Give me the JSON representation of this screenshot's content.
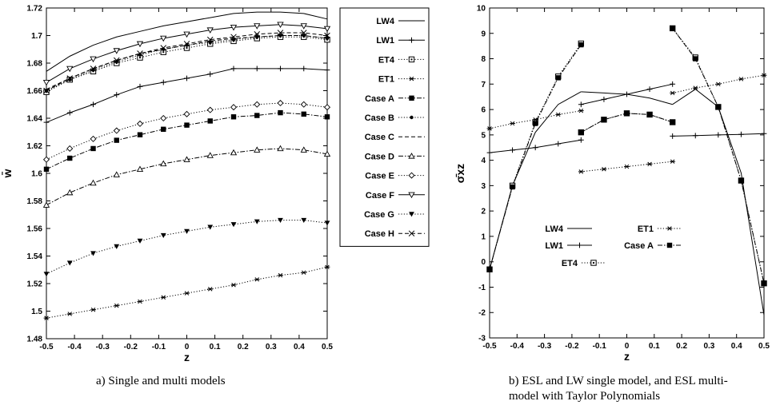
{
  "captions": {
    "a": "a) Single and multi models",
    "b_line1": "b) ESL and LW single model, and ESL multi-",
    "b_line2": "model with Taylor Polynomials"
  },
  "chart_data": [
    {
      "type": "line",
      "xlabel": "z",
      "ylabel": "w̄",
      "xlim": [
        -0.5,
        0.5
      ],
      "ylim": [
        1.48,
        1.72
      ],
      "xticks": [
        "-0.5",
        "-0.4",
        "-0.3",
        "-0.2",
        "-0.1",
        "0",
        "0.1",
        "0.2",
        "0.3",
        "0.4",
        "0.5"
      ],
      "yticks": [
        "1.48",
        "1.5",
        "1.52",
        "1.54",
        "1.56",
        "1.58",
        "1.6",
        "1.62",
        "1.64",
        "1.66",
        "1.68",
        "1.7",
        "1.72"
      ],
      "legend_position": "right-outside",
      "x": [
        -0.5,
        -0.4167,
        -0.3333,
        -0.25,
        -0.1667,
        -0.0833,
        0,
        0.0833,
        0.1667,
        0.25,
        0.3333,
        0.4167,
        0.5
      ],
      "series": [
        {
          "name": "LW4",
          "marker": "none",
          "dash": "solid",
          "values": [
            1.674,
            1.685,
            1.693,
            1.699,
            1.703,
            1.707,
            1.71,
            1.713,
            1.716,
            1.717,
            1.717,
            1.716,
            1.712
          ]
        },
        {
          "name": "LW1",
          "marker": "plus",
          "dash": "solid",
          "values": [
            1.637,
            1.644,
            1.65,
            1.657,
            1.663,
            1.666,
            1.669,
            1.672,
            1.676,
            1.676,
            1.676,
            1.676,
            1.675
          ]
        },
        {
          "name": "ET4",
          "marker": "square-open",
          "dash": "dotted",
          "values": [
            1.659,
            1.668,
            1.674,
            1.68,
            1.684,
            1.688,
            1.691,
            1.694,
            1.696,
            1.698,
            1.699,
            1.699,
            1.697
          ]
        },
        {
          "name": "ET1",
          "marker": "asterisk",
          "dash": "dotted",
          "values": [
            1.495,
            1.498,
            1.501,
            1.504,
            1.507,
            1.51,
            1.513,
            1.516,
            1.519,
            1.523,
            1.526,
            1.528,
            1.532
          ]
        },
        {
          "name": "Case A",
          "marker": "square-filled",
          "dash": "dashdot",
          "values": [
            1.603,
            1.611,
            1.618,
            1.624,
            1.628,
            1.632,
            1.635,
            1.638,
            1.641,
            1.642,
            1.644,
            1.643,
            1.641
          ]
        },
        {
          "name": "Case B",
          "marker": "dot",
          "dash": "dotted",
          "values": [
            1.66,
            1.668,
            1.675,
            1.681,
            1.686,
            1.69,
            1.693,
            1.695,
            1.697,
            1.699,
            1.7,
            1.7,
            1.698
          ]
        },
        {
          "name": "Case C",
          "marker": "none",
          "dash": "dashed",
          "values": [
            1.661,
            1.669,
            1.676,
            1.682,
            1.687,
            1.69,
            1.693,
            1.696,
            1.698,
            1.699,
            1.7,
            1.7,
            1.698
          ]
        },
        {
          "name": "Case D",
          "marker": "triangle",
          "dash": "dashdot",
          "values": [
            1.577,
            1.586,
            1.593,
            1.599,
            1.603,
            1.607,
            1.61,
            1.613,
            1.615,
            1.617,
            1.618,
            1.617,
            1.614
          ]
        },
        {
          "name": "Case E",
          "marker": "diamond-open",
          "dash": "dotted",
          "values": [
            1.61,
            1.618,
            1.625,
            1.631,
            1.636,
            1.64,
            1.643,
            1.646,
            1.648,
            1.65,
            1.651,
            1.65,
            1.648
          ]
        },
        {
          "name": "Case F",
          "marker": "triangle-down-open",
          "dash": "solid",
          "values": [
            1.666,
            1.676,
            1.683,
            1.689,
            1.694,
            1.698,
            1.701,
            1.704,
            1.706,
            1.707,
            1.708,
            1.707,
            1.705
          ]
        },
        {
          "name": "Case G",
          "marker": "triangle-down-filled",
          "dash": "dotted",
          "values": [
            1.527,
            1.535,
            1.542,
            1.547,
            1.551,
            1.555,
            1.558,
            1.561,
            1.563,
            1.565,
            1.566,
            1.566,
            1.564
          ]
        },
        {
          "name": "Case H",
          "marker": "x",
          "dash": "dashed",
          "values": [
            1.66,
            1.669,
            1.676,
            1.682,
            1.687,
            1.691,
            1.694,
            1.697,
            1.699,
            1.701,
            1.702,
            1.702,
            1.7
          ]
        }
      ]
    },
    {
      "type": "line",
      "xlabel": "z",
      "ylabel": "σ̄xz",
      "xlim": [
        -0.5,
        0.5
      ],
      "ylim": [
        -3,
        10
      ],
      "xticks": [
        "-0.5",
        "-0.4",
        "-0.3",
        "-0.2",
        "-0.1",
        "0",
        "0.1",
        "0.2",
        "0.3",
        "0.4",
        "0.5"
      ],
      "yticks": [
        "-3",
        "-2",
        "-1",
        "0",
        "1",
        "2",
        "3",
        "4",
        "5",
        "6",
        "7",
        "8",
        "9",
        "10"
      ],
      "legend_position": "lower-center",
      "series": [
        {
          "name": "LW4",
          "marker": "none",
          "dash": "solid",
          "segments": [
            {
              "x": [
                -0.5,
                -0.4167,
                -0.3333,
                -0.25,
                -0.1667
              ],
              "y": [
                -0.3,
                3.0,
                5.1,
                6.2,
                6.7
              ]
            },
            {
              "x": [
                -0.1667,
                -0.0833,
                0,
                0.0833,
                0.1667
              ],
              "y": [
                6.7,
                6.65,
                6.6,
                6.45,
                6.2
              ]
            },
            {
              "x": [
                0.1667,
                0.25,
                0.3333,
                0.4167,
                0.5
              ],
              "y": [
                6.2,
                6.8,
                6.1,
                3.5,
                -2.1
              ]
            }
          ]
        },
        {
          "name": "LW1",
          "marker": "plus",
          "dash": "solid",
          "segments": [
            {
              "x": [
                -0.5,
                -0.4167,
                -0.3333,
                -0.25,
                -0.1667
              ],
              "y": [
                4.3,
                4.4,
                4.5,
                4.65,
                4.8
              ]
            },
            {
              "x": [
                -0.1667,
                -0.0833,
                0,
                0.0833,
                0.1667
              ],
              "y": [
                6.2,
                6.4,
                6.6,
                6.8,
                7.0
              ]
            },
            {
              "x": [
                0.1667,
                0.25,
                0.3333,
                0.4167,
                0.5
              ],
              "y": [
                4.95,
                4.97,
                5.0,
                5.02,
                5.05
              ]
            }
          ]
        },
        {
          "name": "ET4",
          "marker": "square-open",
          "dash": "dotted",
          "segments": [
            {
              "x": [
                -0.5,
                -0.4167,
                -0.3333,
                -0.25,
                -0.1667
              ],
              "y": [
                -0.3,
                3.0,
                5.5,
                7.3,
                8.6
              ]
            },
            {
              "x": [
                -0.1667,
                -0.0833,
                0,
                0.0833,
                0.1667
              ],
              "y": [
                5.1,
                5.6,
                5.85,
                5.8,
                5.5
              ]
            },
            {
              "x": [
                0.1667,
                0.25,
                0.3333,
                0.4167,
                0.5
              ],
              "y": [
                9.2,
                8.05,
                6.1,
                3.2,
                -0.85
              ]
            }
          ]
        },
        {
          "name": "ET1",
          "marker": "asterisk",
          "dash": "dotted",
          "segments": [
            {
              "x": [
                -0.5,
                -0.4167,
                -0.3333,
                -0.25,
                -0.1667
              ],
              "y": [
                5.25,
                5.45,
                5.6,
                5.8,
                5.95
              ]
            },
            {
              "x": [
                -0.1667,
                -0.0833,
                0,
                0.0833,
                0.1667
              ],
              "y": [
                3.55,
                3.65,
                3.75,
                3.85,
                3.95
              ]
            },
            {
              "x": [
                0.1667,
                0.25,
                0.3333,
                0.4167,
                0.5
              ],
              "y": [
                6.65,
                6.85,
                7.0,
                7.2,
                7.35
              ]
            }
          ]
        },
        {
          "name": "Case A",
          "marker": "square-filled",
          "dash": "dashdot",
          "segments": [
            {
              "x": [
                -0.5,
                -0.4167,
                -0.3333,
                -0.25,
                -0.1667
              ],
              "y": [
                -0.3,
                2.95,
                5.45,
                7.25,
                8.55
              ]
            },
            {
              "x": [
                -0.1667,
                -0.0833,
                0,
                0.0833,
                0.1667
              ],
              "y": [
                5.1,
                5.6,
                5.85,
                5.8,
                5.5
              ]
            },
            {
              "x": [
                0.1667,
                0.25,
                0.3333,
                0.4167,
                0.5
              ],
              "y": [
                9.2,
                8.0,
                6.1,
                3.2,
                -0.85
              ]
            }
          ]
        }
      ]
    }
  ]
}
